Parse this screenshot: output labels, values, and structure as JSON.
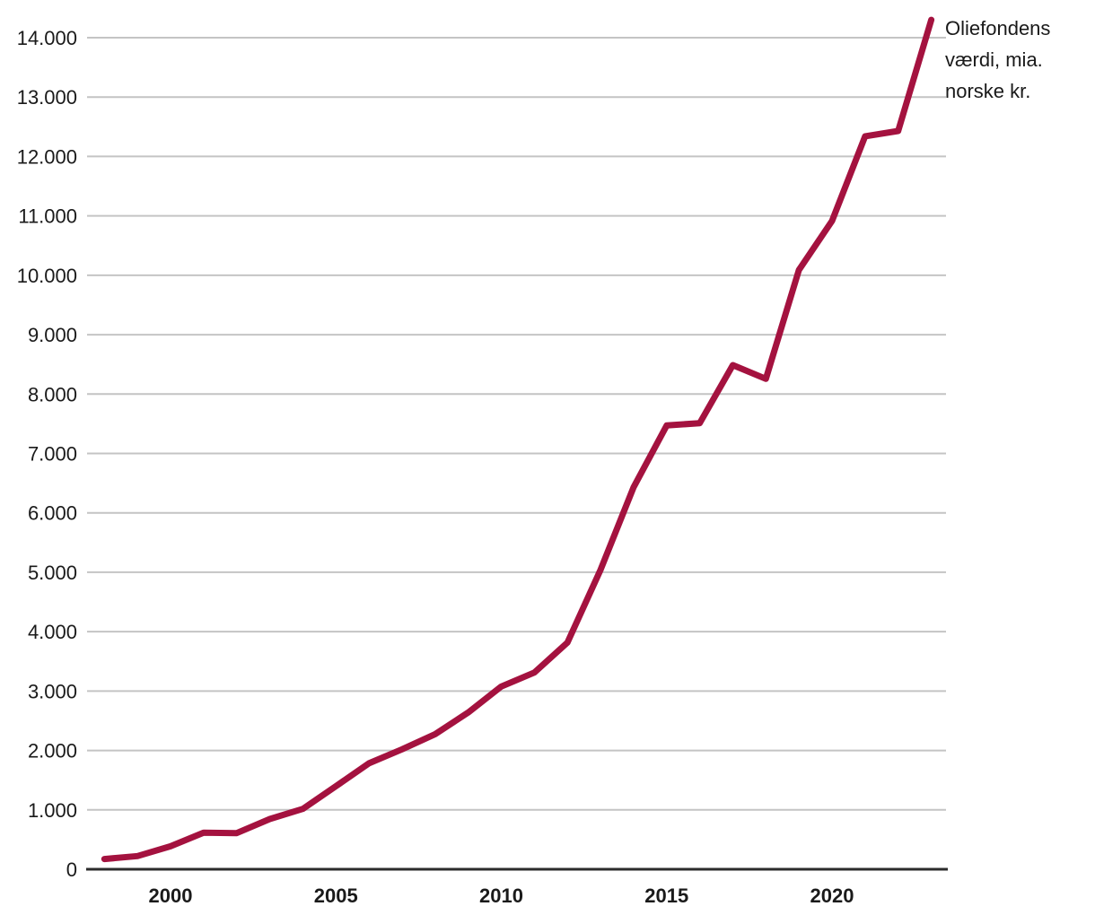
{
  "chart_data": {
    "type": "line",
    "title": "",
    "xlabel": "",
    "ylabel": "",
    "annotation": "Oliefondens værdi, mia. norske kr.",
    "series": [
      {
        "name": "Oliefondens værdi, mia. norske kr.",
        "x": [
          1998,
          1999,
          2000,
          2001,
          2002,
          2003,
          2004,
          2005,
          2006,
          2007,
          2008,
          2009,
          2010,
          2011,
          2012,
          2013,
          2014,
          2015,
          2016,
          2017,
          2018,
          2019,
          2020,
          2021,
          2022,
          2023
        ],
        "values": [
          172,
          222,
          386,
          614,
          609,
          845,
          1016,
          1399,
          1784,
          2019,
          2275,
          2640,
          3077,
          3312,
          3816,
          5038,
          6431,
          7471,
          7510,
          8488,
          8256,
          10088,
          10914,
          12340,
          12429,
          14300
        ]
      }
    ],
    "x_ticks": [
      {
        "value": 2000,
        "label": "2000"
      },
      {
        "value": 2005,
        "label": "2005"
      },
      {
        "value": 2010,
        "label": "2010"
      },
      {
        "value": 2015,
        "label": "2015"
      },
      {
        "value": 2020,
        "label": "2020"
      }
    ],
    "y_ticks": [
      {
        "value": 0,
        "label": "0"
      },
      {
        "value": 1000,
        "label": "1.000"
      },
      {
        "value": 2000,
        "label": "2.000"
      },
      {
        "value": 3000,
        "label": "3.000"
      },
      {
        "value": 4000,
        "label": "4.000"
      },
      {
        "value": 5000,
        "label": "5.000"
      },
      {
        "value": 6000,
        "label": "6.000"
      },
      {
        "value": 7000,
        "label": "7.000"
      },
      {
        "value": 8000,
        "label": "8.000"
      },
      {
        "value": 9000,
        "label": "9.000"
      },
      {
        "value": 10000,
        "label": "10.000"
      },
      {
        "value": 11000,
        "label": "11.000"
      },
      {
        "value": 12000,
        "label": "12.000"
      },
      {
        "value": 13000,
        "label": "13.000"
      },
      {
        "value": 14000,
        "label": "14.000"
      }
    ],
    "xlim": [
      1998,
      2023
    ],
    "ylim": [
      0,
      14335
    ],
    "grid": "horizontal",
    "legend_position": "top-right",
    "colors": {
      "line": "#A4123F",
      "grid": "#C4C4C4",
      "axis": "#2B2B2B",
      "text": "#1A1A1A",
      "background": "#FFFFFF"
    }
  }
}
